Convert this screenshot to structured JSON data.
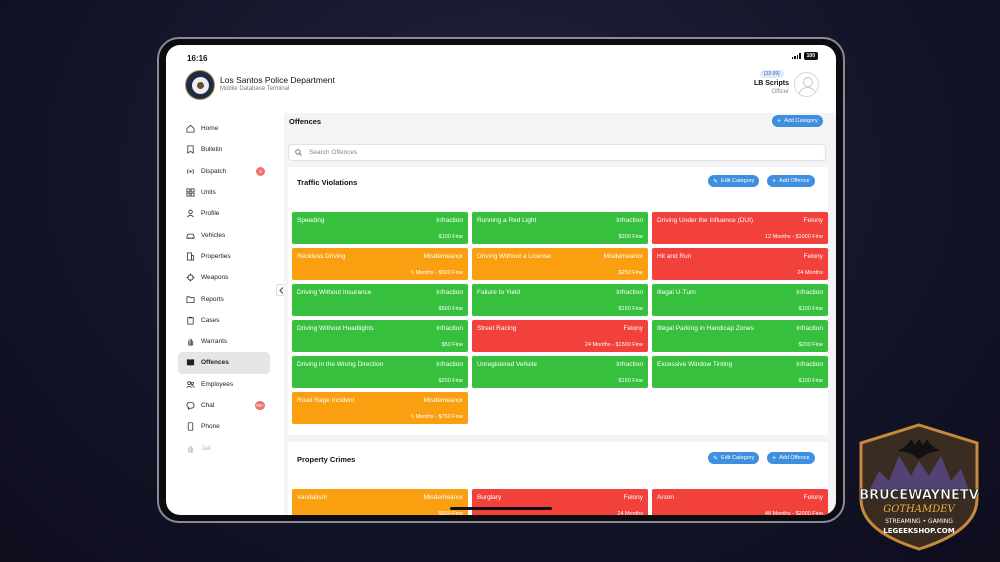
{
  "status": {
    "time": "16:16",
    "battery": "100"
  },
  "header": {
    "title": "Los Santos Police Department",
    "subtitle": "Mobile Database Terminal"
  },
  "user": {
    "badge": "[33-99]",
    "name": "LB Scripts",
    "role": "Officer"
  },
  "sidebar": {
    "items": [
      {
        "label": "Home",
        "icon": "home-icon"
      },
      {
        "label": "Bulletin",
        "icon": "bookmark-icon"
      },
      {
        "label": "Dispatch",
        "icon": "radio-icon",
        "badge": "3"
      },
      {
        "label": "Units",
        "icon": "grid-icon"
      },
      {
        "label": "Profile",
        "icon": "user-icon"
      },
      {
        "label": "Vehicles",
        "icon": "car-icon"
      },
      {
        "label": "Properties",
        "icon": "building-icon"
      },
      {
        "label": "Weapons",
        "icon": "crosshair-icon"
      },
      {
        "label": "Reports",
        "icon": "folder-icon"
      },
      {
        "label": "Cases",
        "icon": "clipboard-icon"
      },
      {
        "label": "Warrants",
        "icon": "hand-icon"
      },
      {
        "label": "Offences",
        "icon": "book-icon",
        "active": true
      },
      {
        "label": "Employees",
        "icon": "users-icon"
      },
      {
        "label": "Chat",
        "icon": "chat-icon",
        "badge": "99+"
      },
      {
        "label": "Phone",
        "icon": "phone-icon"
      },
      {
        "label": "Jail",
        "icon": "hand-icon",
        "disabled": true
      }
    ]
  },
  "main": {
    "title": "Offences",
    "add_category_label": "Add Category",
    "search_placeholder": "Search Offences",
    "edit_category_label": "Edit Category",
    "add_offence_label": "Add Offence"
  },
  "sections": [
    {
      "title": "Traffic Violations",
      "offences": [
        {
          "name": "Speeding",
          "class": "Infraction",
          "penalty": "$100 Fine"
        },
        {
          "name": "Running a Red Light",
          "class": "Infraction",
          "penalty": "$200 Fine"
        },
        {
          "name": "Driving Under the Influence (DUI)",
          "class": "Felony",
          "penalty": "12 Months - $1000 Fine"
        },
        {
          "name": "Reckless Driving",
          "class": "Misdemeanor",
          "penalty": "6 Months - $500 Fine"
        },
        {
          "name": "Driving Without a License",
          "class": "Misdemeanor",
          "penalty": "$250 Fine"
        },
        {
          "name": "Hit and Run",
          "class": "Felony",
          "penalty": "24 Months"
        },
        {
          "name": "Driving Without Insurance",
          "class": "Infraction",
          "penalty": "$500 Fine"
        },
        {
          "name": "Failure to Yield",
          "class": "Infraction",
          "penalty": "$150 Fine"
        },
        {
          "name": "Illegal U-Turn",
          "class": "Infraction",
          "penalty": "$100 Fine"
        },
        {
          "name": "Driving Without Headlights",
          "class": "Infraction",
          "penalty": "$50 Fine"
        },
        {
          "name": "Street Racing",
          "class": "Felony",
          "penalty": "24 Months - $1500 Fine"
        },
        {
          "name": "Illegal Parking in Handicap Zones",
          "class": "Infraction",
          "penalty": "$200 Fine"
        },
        {
          "name": "Driving in the Wrong Direction",
          "class": "Infraction",
          "penalty": "$200 Fine"
        },
        {
          "name": "Unregistered Vehicle",
          "class": "Infraction",
          "penalty": "$150 Fine"
        },
        {
          "name": "Excessive Window Tinting",
          "class": "Infraction",
          "penalty": "$100 Fine"
        },
        {
          "name": "Road Rage Incident",
          "class": "Misdemeanor",
          "penalty": "6 Months - $750 Fine"
        }
      ]
    },
    {
      "title": "Property Crimes",
      "offences": [
        {
          "name": "Vandalism",
          "class": "Misdemeanor",
          "penalty": "$500 Fine"
        },
        {
          "name": "Burglary",
          "class": "Felony",
          "penalty": "24 Months"
        },
        {
          "name": "Arson",
          "class": "Felony",
          "penalty": "48 Months - $2000 Fine"
        }
      ]
    }
  ],
  "watermark": {
    "line1": "BRUCEWAYNETV",
    "line2": "GOTHAMDEV",
    "line3": "STREAMING • GAMING",
    "line4": "LEGEEKSHOP.COM"
  }
}
